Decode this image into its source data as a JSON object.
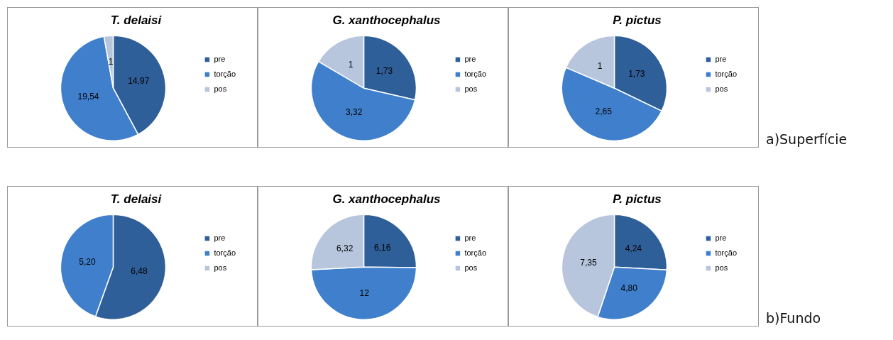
{
  "chart_data": [
    {
      "type": "pie",
      "title": "T. delaisi",
      "categories": [
        "pre",
        "torção",
        "pos"
      ],
      "values": [
        14.97,
        19.54,
        1
      ],
      "value_labels": [
        "14,97",
        "19,54",
        "1"
      ],
      "colors": [
        "#2f5f98",
        "#3f7fcc",
        "#b7c5dd"
      ],
      "legend": "right"
    },
    {
      "type": "pie",
      "title": "G. xanthocephalus",
      "categories": [
        "pre",
        "torção",
        "pos"
      ],
      "values": [
        1.73,
        3.32,
        1
      ],
      "value_labels": [
        "1,73",
        "3,32",
        "1"
      ],
      "colors": [
        "#2f5f98",
        "#3f7fcc",
        "#b7c5dd"
      ],
      "legend": "right"
    },
    {
      "type": "pie",
      "title": "P. pictus",
      "categories": [
        "pre",
        "torção",
        "pos"
      ],
      "values": [
        1.73,
        2.65,
        1
      ],
      "value_labels": [
        "1,73",
        "2,65",
        "1"
      ],
      "colors": [
        "#2f5f98",
        "#3f7fcc",
        "#b7c5dd"
      ],
      "legend": "right",
      "annotations": [
        "a)Superfície"
      ]
    },
    {
      "type": "pie",
      "title": "T. delaisi",
      "categories": [
        "pre",
        "torção",
        "pos"
      ],
      "values": [
        6.48,
        5.2,
        0
      ],
      "value_labels": [
        "6,48",
        "5,20",
        null
      ],
      "colors": [
        "#2f5f98",
        "#3f7fcc",
        "#b7c5dd"
      ],
      "legend": "right"
    },
    {
      "type": "pie",
      "title": "G. xanthocephalus",
      "categories": [
        "pre",
        "torção",
        "pos"
      ],
      "values": [
        6.16,
        12,
        6.32
      ],
      "value_labels": [
        "6,16",
        "12",
        "6,32"
      ],
      "colors": [
        "#2f5f98",
        "#3f7fcc",
        "#b7c5dd"
      ],
      "legend": "right"
    },
    {
      "type": "pie",
      "title": "P. pictus",
      "categories": [
        "pre",
        "torção",
        "pos"
      ],
      "values": [
        4.24,
        4.8,
        7.35
      ],
      "value_labels": [
        "4,24",
        "4,80",
        "7,35"
      ],
      "colors": [
        "#2f5f98",
        "#3f7fcc",
        "#b7c5dd"
      ],
      "legend": "right",
      "annotations": [
        "b)Fundo"
      ]
    }
  ]
}
